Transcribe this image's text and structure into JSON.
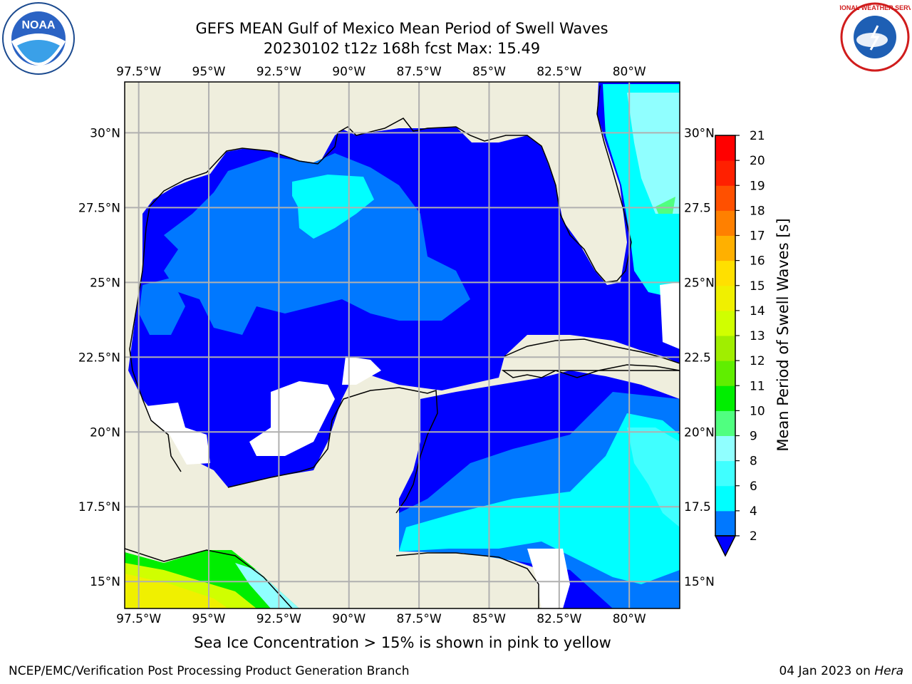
{
  "title": {
    "line1": "GEFS MEAN Gulf of Mexico Mean Period of Swell Waves",
    "line2": "20230102 t12z 168h fcst   Max: 15.49"
  },
  "logos": {
    "left": {
      "name": "noaa-logo",
      "text": "NOAA"
    },
    "right": {
      "name": "nws-logo",
      "text": "NATIONAL WEATHER SERVICE"
    }
  },
  "map": {
    "lon_ticks": [
      "97.5°W",
      "95°W",
      "92.5°W",
      "90°W",
      "87.5°W",
      "85°W",
      "82.5°W",
      "80°W"
    ],
    "lon_values": [
      -97.5,
      -95,
      -92.5,
      -90,
      -87.5,
      -85,
      -82.5,
      -80
    ],
    "lat_ticks_left": [
      "30°N",
      "27.5°N",
      "25°N",
      "22.5°N",
      "20°N",
      "17.5°N",
      "15°N"
    ],
    "lat_ticks_right": [
      "30°N",
      "27.5",
      "25°N",
      "22.5",
      "20°N",
      "17.5",
      "15°N"
    ],
    "lat_values": [
      30,
      27.5,
      25,
      22.5,
      20,
      17.5,
      15
    ],
    "extent": {
      "lon_min": -98,
      "lon_max": -78.2,
      "lat_min": 14.1,
      "lat_max": 31.7
    },
    "colors": {
      "land": "#efeedd",
      "no_data": "#ffffff",
      "grid": "#b0b0b0",
      "coast": "#000000"
    }
  },
  "colorbar": {
    "label": "Mean Period of Swell Waves [s]",
    "levels": [
      2,
      4,
      6,
      8,
      9,
      10,
      11,
      12,
      13,
      14,
      15,
      16,
      17,
      18,
      19,
      20,
      21
    ],
    "colors": [
      "#0000ff",
      "#0078ff",
      "#00ffff",
      "#40ffff",
      "#90ffff",
      "#50ff80",
      "#00ee00",
      "#60ee00",
      "#a0ee00",
      "#d0ff00",
      "#f0f000",
      "#ffe000",
      "#ffb000",
      "#ff8000",
      "#ff5000",
      "#ff2000",
      "#ff0000"
    ],
    "extend": "min"
  },
  "footer": {
    "note": "Sea Ice Concentration > 15% is shown in pink to yellow",
    "left": "NCEP/EMC/Verification Post Processing Product Generation Branch",
    "right_date": "04 Jan 2023 on",
    "right_host": "Hera"
  }
}
